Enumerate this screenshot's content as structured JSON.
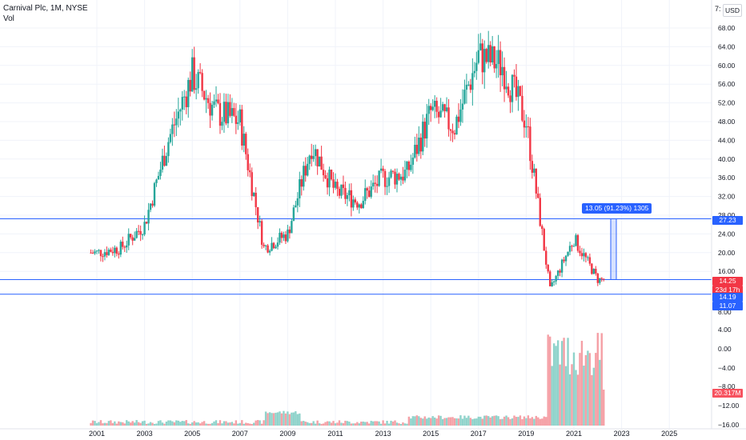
{
  "legend": {
    "symbol": "Carnival Plc, 1M, NYSE",
    "indicator": "Vol"
  },
  "currency": {
    "prefix": "7:",
    "label": "USD"
  },
  "price_axis": {
    "labels": [
      "68.00",
      "64.00",
      "60.00",
      "56.00",
      "52.00",
      "48.00",
      "44.00",
      "40.00",
      "36.00",
      "32.00",
      "28.00",
      "24.00",
      "20.00",
      "16.00",
      "8.00"
    ]
  },
  "volume_axis": {
    "labels": [
      "4.00",
      "0.00",
      "−4.00",
      "−8.00",
      "−12.00",
      "−16.00"
    ]
  },
  "time_axis": {
    "labels": [
      "2001",
      "2003",
      "2005",
      "2007",
      "2009",
      "2011",
      "2013",
      "2015",
      "2017",
      "2019",
      "2021",
      "2023",
      "2025"
    ]
  },
  "tags": {
    "level_high": "27.23",
    "last_price": "14.25",
    "countdown": "23d 17h",
    "level_low": "14.19",
    "low_value": "11.07",
    "volume_last": "20.317M"
  },
  "measure_label": "13.05 (91.23%) 1305",
  "colors": {
    "up": "#26a69a",
    "down": "#f23645",
    "vol_up": "#8fd3cb",
    "vol_down": "#f5a0a6",
    "hline": "#2962ff",
    "grid": "#f0f3fa"
  },
  "chart_data": {
    "type": "candlestick",
    "title": "Carnival Plc, 1M, NYSE",
    "ylabel": "USD",
    "ylim": [
      5,
      74
    ],
    "horizontal_levels": [
      27.23,
      14.25,
      14.19
    ],
    "x": [
      "2001",
      "2002",
      "2003",
      "2004",
      "2005",
      "2006",
      "2007",
      "2008",
      "2009",
      "2010",
      "2011",
      "2012",
      "2013",
      "2014",
      "2015",
      "2016",
      "2017",
      "2018",
      "2019",
      "2020",
      "2021",
      "2022"
    ],
    "close": [
      20,
      21,
      26,
      44,
      58,
      50,
      48,
      21,
      24,
      43,
      33,
      31,
      36,
      37,
      50,
      47,
      62,
      60,
      48,
      12,
      23,
      14.25
    ],
    "volume_label_last": "20.317M"
  }
}
